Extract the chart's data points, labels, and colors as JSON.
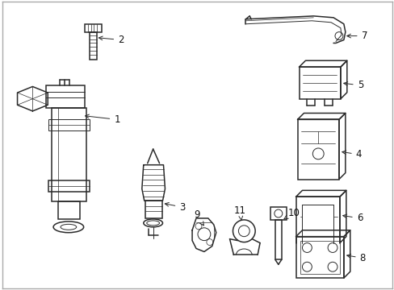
{
  "bg_color": "#ffffff",
  "line_color": "#2a2a2a",
  "label_color": "#111111",
  "border_color": "#aaaaaa",
  "figsize": [
    4.89,
    3.6
  ],
  "dpi": 100,
  "label_fontsize": 8.5,
  "arrow_lw": 0.7
}
